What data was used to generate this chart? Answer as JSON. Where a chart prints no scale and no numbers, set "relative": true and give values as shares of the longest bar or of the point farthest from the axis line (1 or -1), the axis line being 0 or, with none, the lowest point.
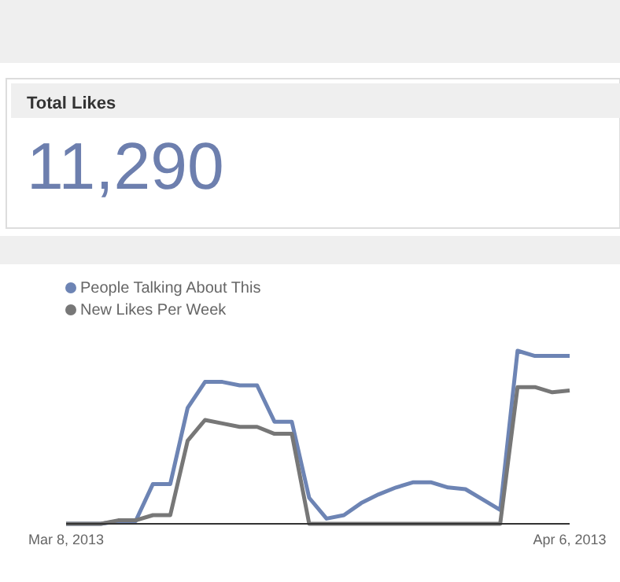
{
  "chart_data": [
    {
      "type": "other",
      "title": "Total Likes",
      "annotations": [
        "11,290"
      ]
    },
    {
      "type": "line",
      "relative": true,
      "legend": "top left",
      "marker": "none",
      "line_style": "solid",
      "x": [
        "2013-03-08",
        "2013-03-09",
        "2013-03-10",
        "2013-03-11",
        "2013-03-12",
        "2013-03-13",
        "2013-03-14",
        "2013-03-15",
        "2013-03-16",
        "2013-03-17",
        "2013-03-18",
        "2013-03-19",
        "2013-03-20",
        "2013-03-21",
        "2013-03-22",
        "2013-03-23",
        "2013-03-24",
        "2013-03-25",
        "2013-03-26",
        "2013-03-27",
        "2013-03-28",
        "2013-03-29",
        "2013-03-30",
        "2013-03-31",
        "2013-04-01",
        "2013-04-02",
        "2013-04-03",
        "2013-04-04",
        "2013-04-05",
        "2013-04-06"
      ],
      "xlim": [
        "2013-03-08",
        "2013-04-06"
      ],
      "xticks": [
        {
          "value": "2013-03-08",
          "label": "Mar 8, 2013"
        },
        {
          "value": "2013-04-06",
          "label": "Apr 6, 2013"
        }
      ],
      "series": [
        {
          "name": "People Talking About This",
          "color": "#6d84b4",
          "values": [
            0,
            0,
            0,
            0.015,
            0.015,
            0.23,
            0.23,
            0.67,
            0.82,
            0.82,
            0.8,
            0.8,
            0.59,
            0.59,
            0.15,
            0.03,
            0.05,
            0.12,
            0.17,
            0.21,
            0.24,
            0.24,
            0.21,
            0.2,
            0.14,
            0.08,
            1,
            0.97,
            0.97,
            0.97
          ]
        },
        {
          "name": "New Likes Per Week",
          "color": "#777777",
          "values": [
            0,
            0,
            0,
            0.02,
            0.02,
            0.05,
            0.05,
            0.48,
            0.6,
            0.58,
            0.56,
            0.56,
            0.52,
            0.52,
            0,
            0,
            0,
            0,
            0,
            0,
            0,
            0,
            0,
            0,
            0,
            0,
            0.79,
            0.79,
            0.76,
            0.77
          ]
        }
      ]
    }
  ]
}
